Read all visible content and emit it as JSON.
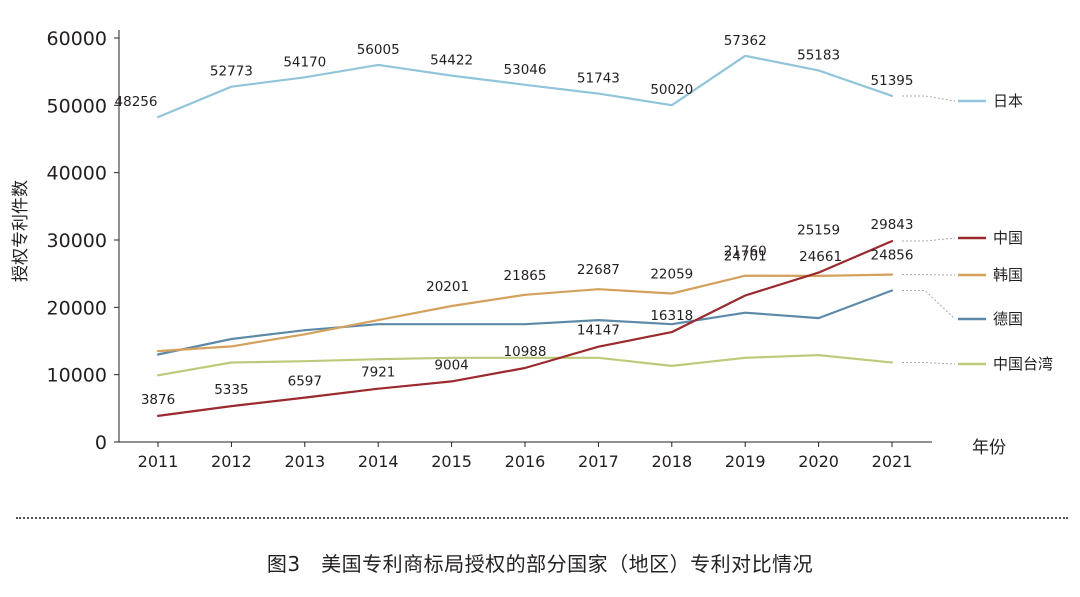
{
  "caption": "图3　美国专利商标局授权的部分国家（地区）专利对比情况",
  "chart_data": {
    "type": "line",
    "title": "",
    "xlabel": "年份",
    "ylabel": "授权专利件数",
    "ylim": [
      0,
      60000
    ],
    "yticks": [
      0,
      10000,
      20000,
      30000,
      40000,
      50000,
      60000
    ],
    "grid": false,
    "legend_position": "right",
    "x": [
      "2011",
      "2012",
      "2013",
      "2014",
      "2015",
      "2016",
      "2017",
      "2018",
      "2019",
      "2020",
      "2021"
    ],
    "series": [
      {
        "name": "日本",
        "color": "#92c5d9",
        "values": [
          48256,
          52773,
          54170,
          56005,
          54422,
          53046,
          51743,
          50020,
          57362,
          55183,
          51395
        ],
        "labels": [
          "48256",
          "52773",
          "54170",
          "56005",
          "54422",
          "53046",
          "51743",
          "50020",
          "57362",
          "55183",
          "51395"
        ]
      },
      {
        "name": "中国",
        "color": "#9b2a2e",
        "values": [
          3876,
          5335,
          6597,
          7921,
          9004,
          10988,
          14147,
          16318,
          21760,
          25159,
          29843
        ],
        "labels": [
          "3876",
          "5335",
          "6597",
          "7921",
          "9004",
          "10988",
          "14147",
          "16318",
          "21760",
          "25159",
          "29843"
        ]
      },
      {
        "name": "韩国",
        "color": "#d4a15d",
        "values": [
          13500,
          14200,
          16000,
          18100,
          20201,
          21865,
          22687,
          22059,
          24701,
          24661,
          24856
        ],
        "labels": [
          null,
          null,
          null,
          null,
          "20201",
          "21865",
          "22687",
          "22059",
          "24701",
          "24661",
          "24856"
        ]
      },
      {
        "name": "德国",
        "color": "#5d89a8",
        "values": [
          13000,
          15300,
          16600,
          17500,
          17500,
          17500,
          18100,
          17500,
          19200,
          18400,
          22500
        ],
        "labels": [
          null,
          null,
          null,
          null,
          null,
          null,
          null,
          null,
          null,
          null,
          null
        ]
      },
      {
        "name": "中国台湾",
        "color": "#bccb7b",
        "values": [
          9900,
          11800,
          12000,
          12300,
          12500,
          12500,
          12500,
          11300,
          12500,
          12900,
          11800
        ],
        "labels": [
          null,
          null,
          null,
          null,
          null,
          null,
          null,
          null,
          null,
          null,
          null
        ]
      }
    ]
  }
}
